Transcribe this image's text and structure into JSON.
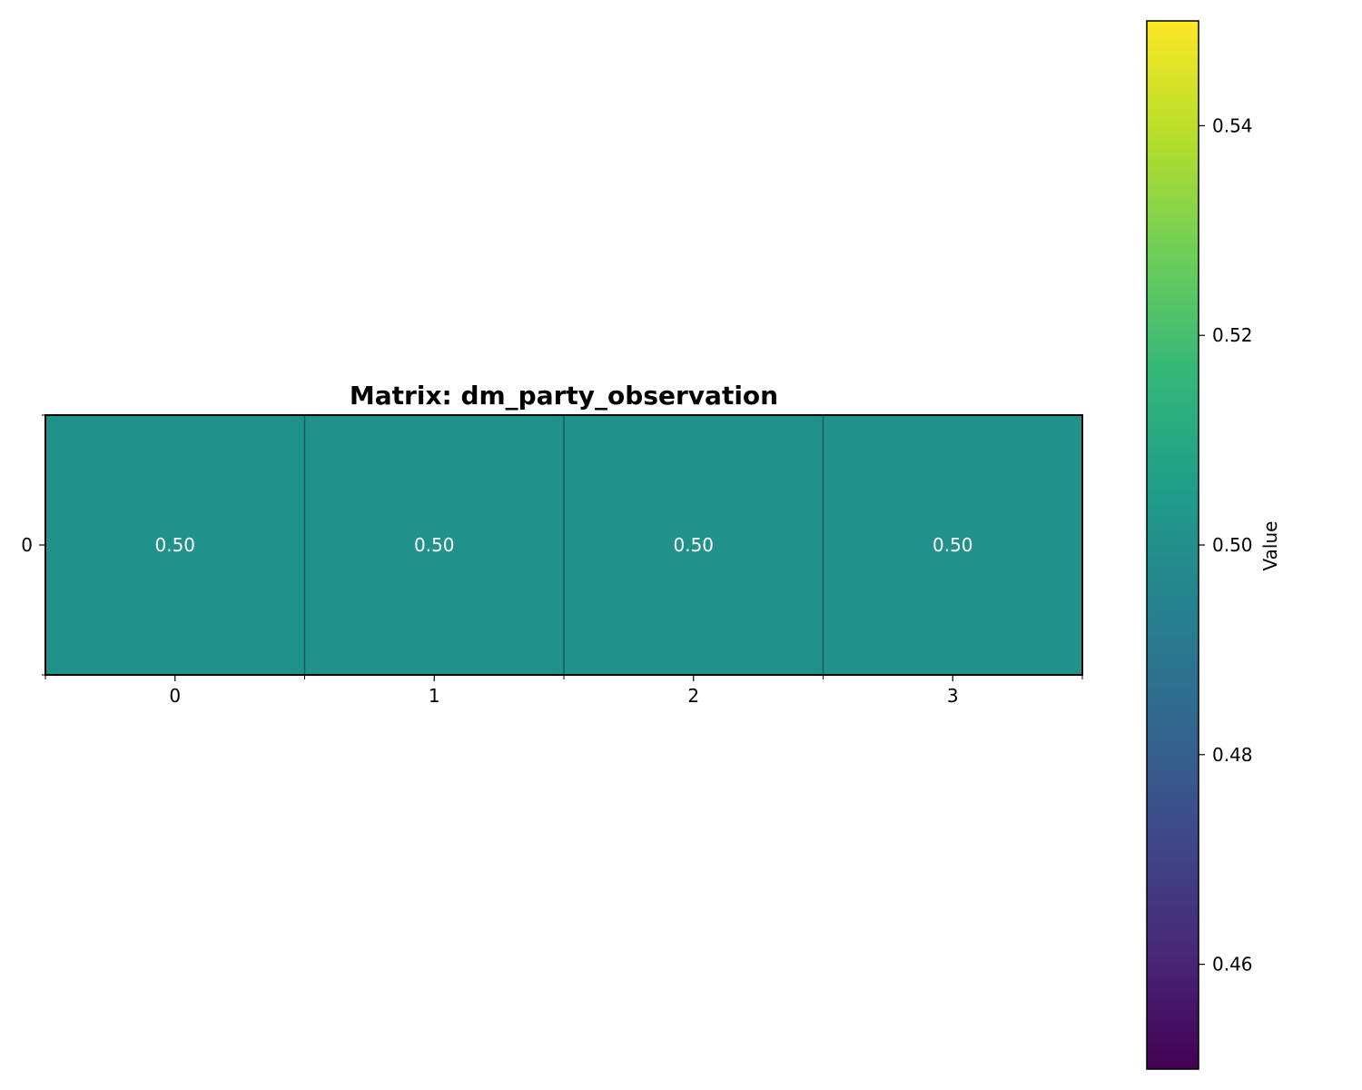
{
  "chart_data": {
    "type": "heatmap",
    "title": "Matrix: dm_party_observation",
    "rows": [
      "0"
    ],
    "columns": [
      "0",
      "1",
      "2",
      "3"
    ],
    "values": [
      [
        0.5,
        0.5,
        0.5,
        0.5
      ]
    ],
    "cell_labels": [
      [
        "0.50",
        "0.50",
        "0.50",
        "0.50"
      ]
    ],
    "colormap": "viridis",
    "colorbar": {
      "label": "Value",
      "range": [
        0.45,
        0.55
      ],
      "ticks": [
        "0.46",
        "0.48",
        "0.50",
        "0.52",
        "0.54"
      ],
      "tick_values": [
        0.46,
        0.48,
        0.5,
        0.52,
        0.54
      ],
      "gradient_colors": [
        "#440154",
        "#482878",
        "#3e4989",
        "#31688e",
        "#26828e",
        "#1f9e89",
        "#35b779",
        "#6ece58",
        "#b5de2b",
        "#fde725"
      ]
    },
    "cell_color": "#21918c",
    "grid_line_color": "#135c5a"
  }
}
